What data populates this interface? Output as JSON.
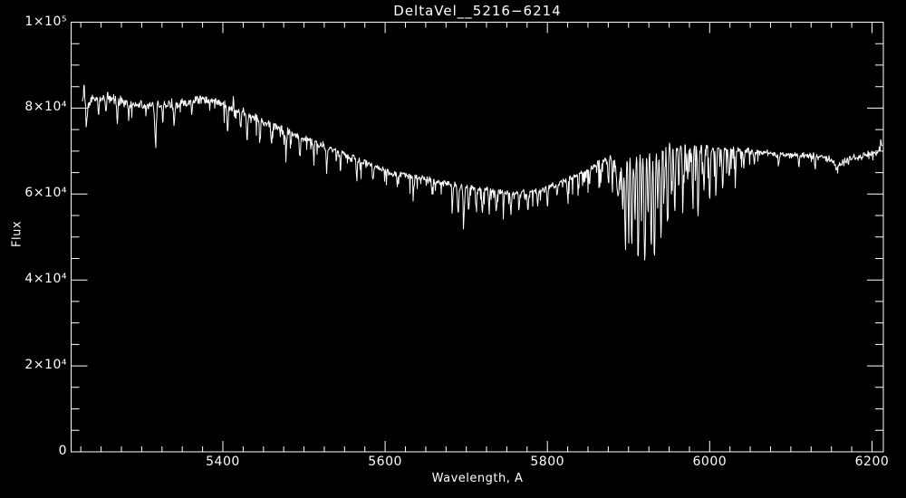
{
  "window": {
    "background": "#000000",
    "foreground": "#ffffff"
  },
  "chart_data": {
    "type": "line",
    "title": "DeltaVel__5216−6214",
    "xlabel": "Wavelength, A",
    "ylabel": "Flux",
    "grid": false,
    "legend": null,
    "axis_color": "#ffffff",
    "series_color": "#ffffff",
    "axis_range": {
      "x": [
        5213,
        6214
      ],
      "y": [
        0,
        100000
      ]
    },
    "x_ticks": [
      {
        "value": 5400,
        "label": "5400"
      },
      {
        "value": 5600,
        "label": "5600"
      },
      {
        "value": 5800,
        "label": "5800"
      },
      {
        "value": 6000,
        "label": "6000"
      },
      {
        "value": 6200,
        "label": "6200"
      }
    ],
    "y_ticks": [
      {
        "value": 0,
        "label": "0"
      },
      {
        "value": 20000,
        "label": "2×10⁴"
      },
      {
        "value": 40000,
        "label": "4×10⁴"
      },
      {
        "value": 60000,
        "label": "6×10⁴"
      },
      {
        "value": 80000,
        "label": "8×10⁴"
      },
      {
        "value": 100000,
        "label": "1×10⁵"
      }
    ],
    "x_minor_step": 25,
    "y_minor_step": 5000,
    "x_major_step": 200,
    "y_major_step": 20000,
    "spectrum": {
      "data_range": [
        5227,
        6213
      ],
      "continuum": [
        [
          5227,
          81500
        ],
        [
          5233,
          80000
        ],
        [
          5240,
          82300
        ],
        [
          5252,
          81800
        ],
        [
          5262,
          82400
        ],
        [
          5270,
          81800
        ],
        [
          5285,
          81000
        ],
        [
          5305,
          80400
        ],
        [
          5322,
          80600
        ],
        [
          5340,
          81000
        ],
        [
          5360,
          81600
        ],
        [
          5375,
          82300
        ],
        [
          5395,
          81200
        ],
        [
          5417,
          79600
        ],
        [
          5440,
          77600
        ],
        [
          5472,
          75000
        ],
        [
          5506,
          72700
        ],
        [
          5540,
          70000
        ],
        [
          5573,
          67400
        ],
        [
          5606,
          65000
        ],
        [
          5640,
          63800
        ],
        [
          5665,
          62800
        ],
        [
          5695,
          61800
        ],
        [
          5725,
          61000
        ],
        [
          5752,
          60400
        ],
        [
          5772,
          60200
        ],
        [
          5795,
          61000
        ],
        [
          5818,
          62800
        ],
        [
          5840,
          64800
        ],
        [
          5862,
          67000
        ],
        [
          5878,
          68400
        ],
        [
          5884,
          67400
        ],
        [
          5888,
          66400
        ],
        [
          5893,
          67400
        ],
        [
          5900,
          69000
        ],
        [
          5910,
          70000
        ],
        [
          5925,
          70700
        ],
        [
          5945,
          71200
        ],
        [
          5958,
          71400
        ],
        [
          5975,
          71000
        ],
        [
          6000,
          70600
        ],
        [
          6030,
          70200
        ],
        [
          6060,
          69800
        ],
        [
          6090,
          69200
        ],
        [
          6115,
          69000
        ],
        [
          6140,
          68500
        ],
        [
          6150,
          67800
        ],
        [
          6157,
          66000
        ],
        [
          6163,
          67200
        ],
        [
          6175,
          68200
        ],
        [
          6195,
          69000
        ],
        [
          6206,
          69600
        ],
        [
          6213,
          71200
        ]
      ],
      "absorption_lines": [
        [
          5232,
          3500,
          0.6
        ],
        [
          5247,
          2800,
          0.6
        ],
        [
          5256,
          3200,
          0.6
        ],
        [
          5270,
          5200,
          0.7
        ],
        [
          5284,
          3500,
          0.6
        ],
        [
          5317,
          8500,
          0.9
        ],
        [
          5326,
          4200,
          0.6
        ],
        [
          5340,
          5000,
          0.7
        ],
        [
          5362,
          3200,
          0.6
        ],
        [
          5406,
          5500,
          0.7
        ],
        [
          5422,
          4500,
          0.6
        ],
        [
          5430,
          6000,
          0.7
        ],
        [
          5446,
          5200,
          0.6
        ],
        [
          5460,
          4200,
          0.6
        ],
        [
          5478,
          4600,
          0.6
        ],
        [
          5495,
          5200,
          0.7
        ],
        [
          5512,
          4200,
          0.6
        ],
        [
          5528,
          5600,
          0.7
        ],
        [
          5545,
          3600,
          0.6
        ],
        [
          5565,
          4200,
          0.6
        ],
        [
          5585,
          3600,
          0.6
        ],
        [
          5615,
          3200,
          0.6
        ],
        [
          5635,
          3600,
          0.6
        ],
        [
          5658,
          3200,
          0.6
        ],
        [
          5683,
          5000,
          0.7
        ],
        [
          5690,
          6500,
          0.8
        ],
        [
          5697,
          7800,
          0.8
        ],
        [
          5703,
          5800,
          0.7
        ],
        [
          5712,
          4800,
          0.7
        ],
        [
          5720,
          5800,
          0.7
        ],
        [
          5728,
          4200,
          0.6
        ],
        [
          5737,
          5200,
          0.7
        ],
        [
          5746,
          3800,
          0.6
        ],
        [
          5755,
          5200,
          0.7
        ],
        [
          5765,
          4200,
          0.6
        ],
        [
          5776,
          4600,
          0.6
        ],
        [
          5788,
          3800,
          0.6
        ],
        [
          5800,
          4200,
          0.6
        ],
        [
          5812,
          3200,
          0.6
        ],
        [
          5825,
          3800,
          0.6
        ],
        [
          5838,
          3200,
          0.6
        ],
        [
          5852,
          3600,
          0.6
        ],
        [
          5866,
          4200,
          0.6
        ],
        [
          5875,
          4800,
          0.6
        ],
        [
          5880,
          5600,
          0.6
        ],
        [
          5887,
          7000,
          1.6
        ],
        [
          5893,
          12000,
          0.8
        ],
        [
          5896,
          18000,
          0.8
        ],
        [
          5900,
          14000,
          0.7
        ],
        [
          5904,
          21000,
          0.8
        ],
        [
          5908,
          16000,
          0.7
        ],
        [
          5912,
          25000,
          0.8
        ],
        [
          5916,
          13000,
          0.7
        ],
        [
          5920,
          26500,
          0.9
        ],
        [
          5924,
          15000,
          0.7
        ],
        [
          5928,
          23000,
          0.8
        ],
        [
          5932,
          25500,
          0.9
        ],
        [
          5936,
          14000,
          0.7
        ],
        [
          5940,
          21000,
          0.8
        ],
        [
          5944,
          11000,
          0.7
        ],
        [
          5948,
          18500,
          0.8
        ],
        [
          5953,
          9500,
          0.7
        ],
        [
          5957,
          15500,
          0.8
        ],
        [
          5962,
          8500,
          0.7
        ],
        [
          5967,
          12500,
          0.7
        ],
        [
          5973,
          7500,
          0.7
        ],
        [
          5979,
          10500,
          0.7
        ],
        [
          5986,
          13500,
          0.8
        ],
        [
          5993,
          9500,
          0.7
        ],
        [
          6000,
          12000,
          0.8
        ],
        [
          6008,
          8500,
          0.7
        ],
        [
          6016,
          10000,
          0.7
        ],
        [
          6024,
          6500,
          0.7
        ],
        [
          6032,
          5000,
          0.6
        ],
        [
          6042,
          4000,
          0.6
        ],
        [
          6055,
          3000,
          0.6
        ],
        [
          6085,
          3000,
          0.6
        ],
        [
          6110,
          2500,
          0.6
        ],
        [
          6130,
          2500,
          0.6
        ]
      ],
      "emission_lines": [
        [
          5229,
          4500,
          0.5
        ],
        [
          5258,
          2500,
          0.4
        ],
        [
          5413,
          3200,
          0.5
        ],
        [
          5672,
          2600,
          0.4
        ],
        [
          5894,
          4000,
          0.4
        ],
        [
          5942,
          4000,
          0.4
        ],
        [
          6211,
          2200,
          0.4
        ]
      ],
      "noise_profile": [
        [
          5227,
          950
        ],
        [
          5260,
          800
        ],
        [
          5400,
          780
        ],
        [
          5550,
          620
        ],
        [
          5700,
          520
        ],
        [
          5850,
          520
        ],
        [
          5950,
          560
        ],
        [
          6100,
          520
        ],
        [
          6213,
          680
        ]
      ],
      "hairy_regions": [
        {
          "from": 5227,
          "to": 5400,
          "probability": 0.07,
          "max_depth": 3000
        },
        {
          "from": 5400,
          "to": 5680,
          "probability": 0.12,
          "max_depth": 3600
        },
        {
          "from": 5680,
          "to": 5848,
          "probability": 0.17,
          "max_depth": 4200
        },
        {
          "from": 5848,
          "to": 6050,
          "probability": 0.27,
          "max_depth": 7500
        },
        {
          "from": 6050,
          "to": 6213,
          "probability": 0.05,
          "max_depth": 2200
        }
      ]
    }
  }
}
